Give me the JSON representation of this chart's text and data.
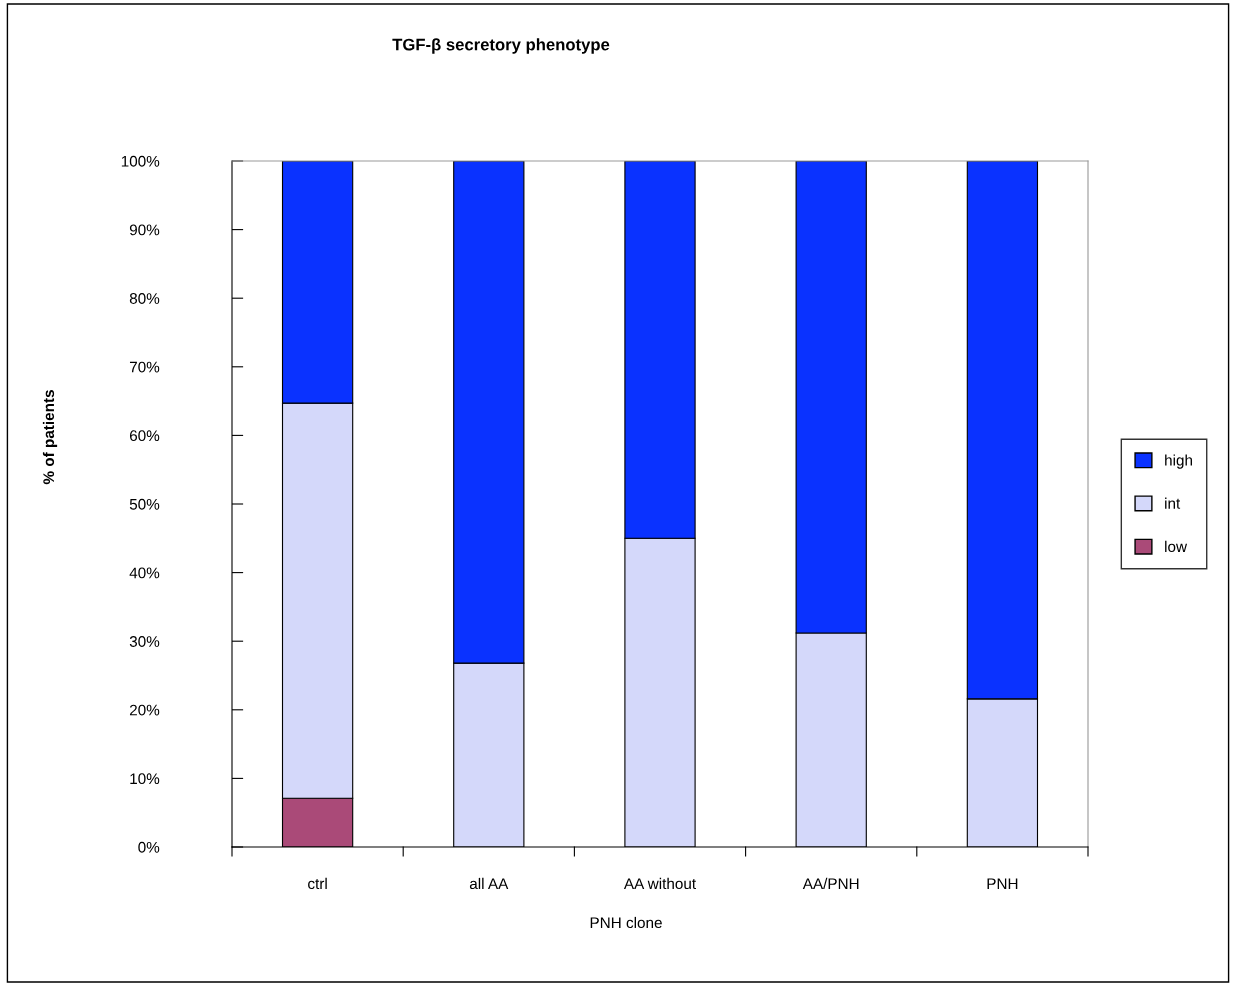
{
  "chart_data": {
    "type": "bar",
    "title": "TGF-β secretory phenotype",
    "xlabel": "PNH clone",
    "ylabel": "% of patients",
    "categories": [
      "ctrl",
      "all AA",
      "AA without",
      "AA/PNH",
      "PNH"
    ],
    "stacked": true,
    "series": [
      {
        "name": "low",
        "color": "#aa4a78",
        "values": [
          7.1,
          0,
          0,
          0,
          0
        ]
      },
      {
        "name": "int",
        "color": "#d4d8fa",
        "values": [
          57.6,
          26.8,
          45.0,
          31.2,
          21.6
        ]
      },
      {
        "name": "high",
        "color": "#0a32ff",
        "values": [
          35.3,
          73.2,
          55.0,
          68.8,
          78.4
        ]
      }
    ],
    "ylim": [
      0,
      100
    ],
    "yticks": [
      {
        "value": 0,
        "label": "0%"
      },
      {
        "value": 10,
        "label": "10%"
      },
      {
        "value": 20,
        "label": "20%"
      },
      {
        "value": 30,
        "label": "30%"
      },
      {
        "value": 40,
        "label": "40%"
      },
      {
        "value": 50,
        "label": "50%"
      },
      {
        "value": 60,
        "label": "60%"
      },
      {
        "value": 70,
        "label": "70%"
      },
      {
        "value": 80,
        "label": "80%"
      },
      {
        "value": 90,
        "label": "90%"
      },
      {
        "value": 100,
        "label": "100%"
      }
    ],
    "grid": false,
    "legend": "right"
  }
}
